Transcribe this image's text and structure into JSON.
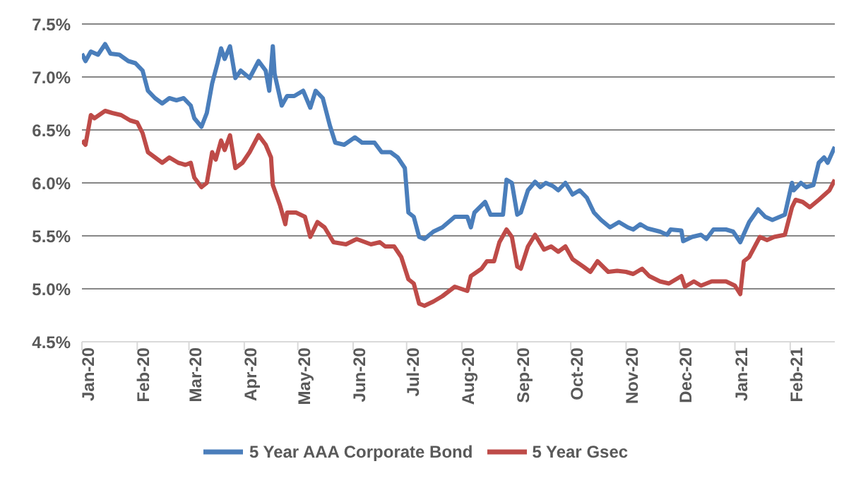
{
  "chart_data": {
    "type": "line",
    "series": [
      {
        "name": "5 Year AAA Corporate Bond",
        "color": "#4a7ebb",
        "x": [
          "2020-01-01",
          "2020-01-03",
          "2020-01-06",
          "2020-01-10",
          "2020-01-14",
          "2020-01-17",
          "2020-01-22",
          "2020-01-27",
          "2020-01-31",
          "2020-02-04",
          "2020-02-07",
          "2020-02-11",
          "2020-02-15",
          "2020-02-19",
          "2020-02-23",
          "2020-02-27",
          "2020-03-02",
          "2020-03-04",
          "2020-03-08",
          "2020-03-11",
          "2020-03-14",
          "2020-03-17",
          "2020-03-19",
          "2020-03-21",
          "2020-03-24",
          "2020-03-27",
          "2020-03-30",
          "2020-04-04",
          "2020-04-09",
          "2020-04-13",
          "2020-04-15",
          "2020-04-17",
          "2020-04-18",
          "2020-04-22",
          "2020-04-25",
          "2020-04-29",
          "2020-05-04",
          "2020-05-08",
          "2020-05-11",
          "2020-05-15",
          "2020-05-19",
          "2020-05-22",
          "2020-05-27",
          "2020-06-02",
          "2020-06-06",
          "2020-06-13",
          "2020-06-17",
          "2020-06-22",
          "2020-06-26",
          "2020-06-30",
          "2020-07-02",
          "2020-07-05",
          "2020-07-08",
          "2020-07-11",
          "2020-07-16",
          "2020-07-21",
          "2020-07-28",
          "2020-08-04",
          "2020-08-06",
          "2020-08-08",
          "2020-08-14",
          "2020-08-17",
          "2020-08-24",
          "2020-08-26",
          "2020-08-29",
          "2020-09-01",
          "2020-09-03",
          "2020-09-07",
          "2020-09-11",
          "2020-09-14",
          "2020-09-17",
          "2020-09-21",
          "2020-09-24",
          "2020-09-28",
          "2020-10-02",
          "2020-10-06",
          "2020-10-10",
          "2020-10-14",
          "2020-10-18",
          "2020-10-23",
          "2020-10-28",
          "2020-11-02",
          "2020-11-05",
          "2020-11-09",
          "2020-11-13",
          "2020-11-20",
          "2020-11-24",
          "2020-11-26",
          "2020-12-02",
          "2020-12-03",
          "2020-12-08",
          "2020-12-13",
          "2020-12-16",
          "2020-12-20",
          "2020-12-27",
          "2020-12-31",
          "2021-01-04",
          "2021-01-09",
          "2021-01-14",
          "2021-01-18",
          "2021-01-22",
          "2021-01-29",
          "2021-02-02",
          "2021-02-03",
          "2021-02-07",
          "2021-02-10",
          "2021-02-14",
          "2021-02-17",
          "2021-02-20",
          "2021-02-22",
          "2021-02-26"
        ],
        "values": [
          7.22,
          7.15,
          7.24,
          7.21,
          7.31,
          7.22,
          7.21,
          7.15,
          7.13,
          7.06,
          6.87,
          6.8,
          6.75,
          6.8,
          6.78,
          6.8,
          6.73,
          6.61,
          6.53,
          6.66,
          6.94,
          7.13,
          7.27,
          7.17,
          7.29,
          6.99,
          7.06,
          6.99,
          7.15,
          7.06,
          6.87,
          7.29,
          7.03,
          6.73,
          6.82,
          6.82,
          6.87,
          6.71,
          6.87,
          6.8,
          6.54,
          6.38,
          6.36,
          6.43,
          6.38,
          6.38,
          6.29,
          6.29,
          6.24,
          6.14,
          5.72,
          5.68,
          5.49,
          5.47,
          5.54,
          5.58,
          5.68,
          5.68,
          5.58,
          5.72,
          5.82,
          5.7,
          5.7,
          6.03,
          6.0,
          5.7,
          5.72,
          5.93,
          6.01,
          5.96,
          6.0,
          5.97,
          5.93,
          6.0,
          5.89,
          5.93,
          5.86,
          5.72,
          5.65,
          5.58,
          5.63,
          5.58,
          5.56,
          5.61,
          5.57,
          5.54,
          5.51,
          5.56,
          5.55,
          5.45,
          5.49,
          5.51,
          5.47,
          5.56,
          5.56,
          5.54,
          5.44,
          5.63,
          5.75,
          5.68,
          5.65,
          5.7,
          6.0,
          5.93,
          6.0,
          5.96,
          5.98,
          6.19,
          6.24,
          6.19,
          6.34
        ]
      },
      {
        "name": "5 Year Gsec",
        "color": "#be4b48",
        "x": [
          "2020-01-01",
          "2020-01-03",
          "2020-01-06",
          "2020-01-08",
          "2020-01-14",
          "2020-01-18",
          "2020-01-23",
          "2020-01-28",
          "2020-02-01",
          "2020-02-04",
          "2020-02-07",
          "2020-02-15",
          "2020-02-19",
          "2020-02-24",
          "2020-02-28",
          "2020-03-02",
          "2020-03-04",
          "2020-03-08",
          "2020-03-11",
          "2020-03-14",
          "2020-03-16",
          "2020-03-19",
          "2020-03-21",
          "2020-03-24",
          "2020-03-27",
          "2020-03-31",
          "2020-04-04",
          "2020-04-09",
          "2020-04-13",
          "2020-04-16",
          "2020-04-17",
          "2020-04-21",
          "2020-04-24",
          "2020-04-25",
          "2020-04-30",
          "2020-05-05",
          "2020-05-08",
          "2020-05-12",
          "2020-05-16",
          "2020-05-21",
          "2020-05-28",
          "2020-06-03",
          "2020-06-11",
          "2020-06-16",
          "2020-06-19",
          "2020-06-24",
          "2020-06-28",
          "2020-07-02",
          "2020-07-05",
          "2020-07-08",
          "2020-07-11",
          "2020-07-16",
          "2020-07-21",
          "2020-07-28",
          "2020-08-04",
          "2020-08-06",
          "2020-08-12",
          "2020-08-15",
          "2020-08-19",
          "2020-08-22",
          "2020-08-26",
          "2020-08-29",
          "2020-09-01",
          "2020-09-03",
          "2020-09-07",
          "2020-09-11",
          "2020-09-16",
          "2020-09-20",
          "2020-09-24",
          "2020-09-28",
          "2020-10-02",
          "2020-10-08",
          "2020-10-12",
          "2020-10-16",
          "2020-10-22",
          "2020-10-27",
          "2020-11-01",
          "2020-11-05",
          "2020-11-10",
          "2020-11-14",
          "2020-11-20",
          "2020-11-25",
          "2020-12-02",
          "2020-12-04",
          "2020-12-09",
          "2020-12-13",
          "2020-12-19",
          "2020-12-27",
          "2021-01-01",
          "2021-01-04",
          "2021-01-06",
          "2021-01-09",
          "2021-01-15",
          "2021-01-19",
          "2021-01-23",
          "2021-01-29",
          "2021-02-02",
          "2021-02-04",
          "2021-02-08",
          "2021-02-12",
          "2021-02-17",
          "2021-02-23",
          "2021-02-26"
        ],
        "values": [
          6.4,
          6.36,
          6.64,
          6.61,
          6.68,
          6.66,
          6.64,
          6.59,
          6.57,
          6.47,
          6.29,
          6.19,
          6.24,
          6.19,
          6.17,
          6.19,
          6.05,
          5.96,
          6.0,
          6.29,
          6.22,
          6.4,
          6.31,
          6.45,
          6.14,
          6.19,
          6.29,
          6.45,
          6.36,
          6.24,
          5.98,
          5.79,
          5.61,
          5.72,
          5.72,
          5.68,
          5.49,
          5.63,
          5.58,
          5.44,
          5.42,
          5.47,
          5.42,
          5.44,
          5.4,
          5.4,
          5.3,
          5.09,
          5.05,
          4.86,
          4.84,
          4.88,
          4.93,
          5.02,
          4.98,
          5.12,
          5.19,
          5.26,
          5.26,
          5.44,
          5.56,
          5.49,
          5.21,
          5.19,
          5.4,
          5.51,
          5.37,
          5.4,
          5.35,
          5.4,
          5.28,
          5.21,
          5.16,
          5.26,
          5.16,
          5.17,
          5.16,
          5.14,
          5.19,
          5.12,
          5.07,
          5.05,
          5.12,
          5.02,
          5.07,
          5.03,
          5.07,
          5.07,
          5.03,
          4.95,
          5.26,
          5.3,
          5.49,
          5.46,
          5.49,
          5.51,
          5.77,
          5.84,
          5.82,
          5.77,
          5.84,
          5.93,
          6.03
        ]
      }
    ],
    "xlim": [
      "2020-01-01",
      "2021-02-26"
    ],
    "xticks": [
      {
        "value": "2020-01-01",
        "label": "Jan-20"
      },
      {
        "value": "2020-02-01",
        "label": "Feb-20"
      },
      {
        "value": "2020-03-01",
        "label": "Mar-20"
      },
      {
        "value": "2020-04-01",
        "label": "Apr-20"
      },
      {
        "value": "2020-05-01",
        "label": "May-20"
      },
      {
        "value": "2020-06-01",
        "label": "Jun-20"
      },
      {
        "value": "2020-07-01",
        "label": "Jul-20"
      },
      {
        "value": "2020-08-01",
        "label": "Aug-20"
      },
      {
        "value": "2020-09-01",
        "label": "Sep-20"
      },
      {
        "value": "2020-10-01",
        "label": "Oct-20"
      },
      {
        "value": "2020-11-01",
        "label": "Nov-20"
      },
      {
        "value": "2020-12-01",
        "label": "Dec-20"
      },
      {
        "value": "2021-01-01",
        "label": "Jan-21"
      },
      {
        "value": "2021-02-01",
        "label": "Feb-21"
      }
    ],
    "ylim": [
      4.5,
      7.5
    ],
    "yticks": [
      {
        "value": 4.5,
        "label": "4.5%"
      },
      {
        "value": 5.0,
        "label": "5.0%"
      },
      {
        "value": 5.5,
        "label": "5.5%"
      },
      {
        "value": 6.0,
        "label": "6.0%"
      },
      {
        "value": 6.5,
        "label": "6.5%"
      },
      {
        "value": 7.0,
        "label": "7.0%"
      },
      {
        "value": 7.5,
        "label": "7.5%"
      }
    ],
    "grid": "y",
    "legend": "bottom",
    "marker": "none",
    "line_style": "solid"
  }
}
